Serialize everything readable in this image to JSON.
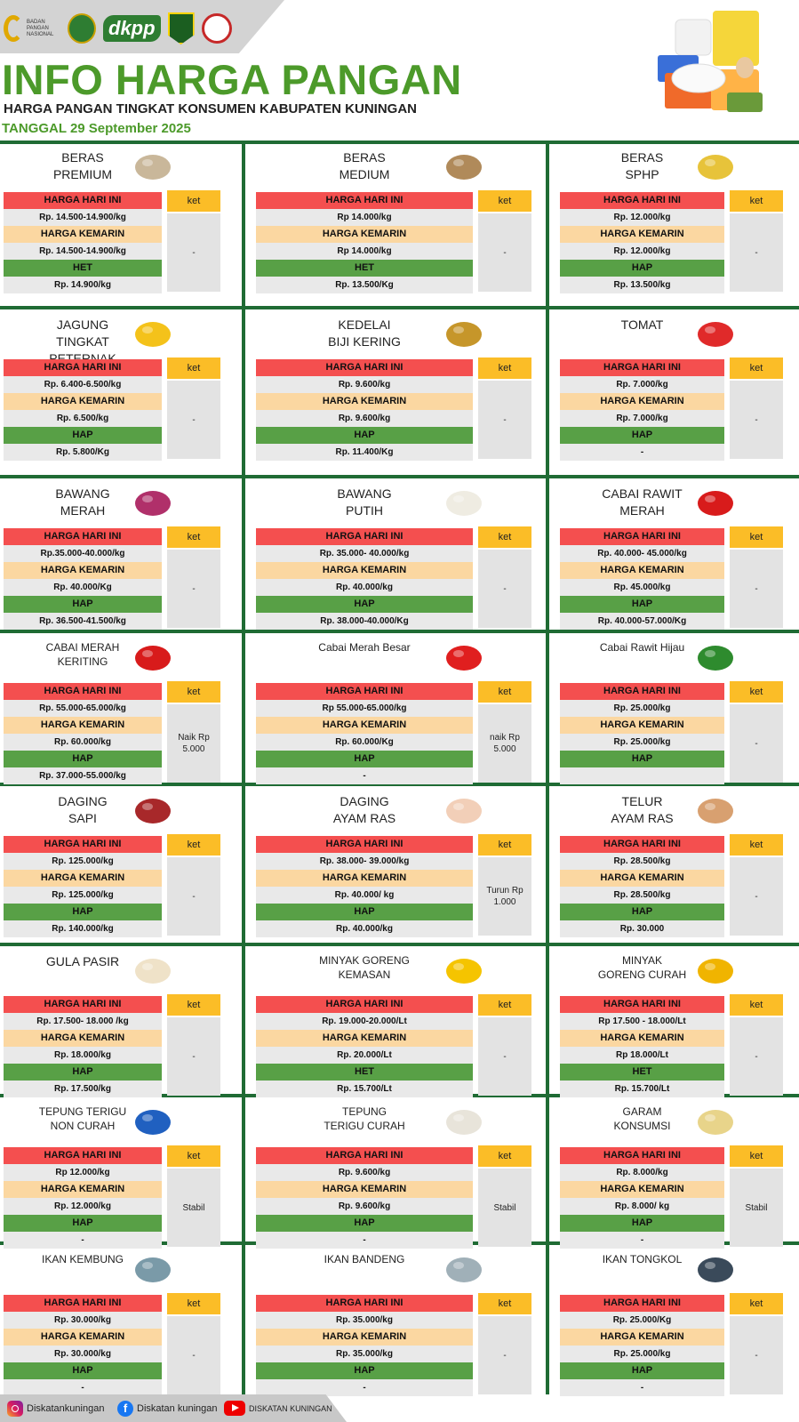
{
  "header": {
    "logo_text": "BADAN PANGAN NASIONAL",
    "dkpp_logo": "dkpp",
    "title": "INFO HARGA PANGAN",
    "subtitle": "HARGA PANGAN TINGKAT KONSUMEN  KABUPATEN KUNINGAN",
    "date": "TANGGAL 29 September 2025"
  },
  "labels": {
    "today": "HARGA HARI INI",
    "yesterday": "HARGA KEMARIN",
    "ket": "ket"
  },
  "commodities": [
    {
      "name": "BERAS\nPREMIUM",
      "today": "Rp. 14.500-14.900/kg",
      "yesterday": "Rp. 14.500-14.900/kg",
      "ref_label": "HET",
      "ref": "Rp. 14.900/kg",
      "note": "-",
      "icon": "rice-sack-icon"
    },
    {
      "name": "BERAS\nMEDIUM",
      "today": "Rp 14.000/kg",
      "yesterday": "Rp 14.000/kg",
      "ref_label": "HET",
      "ref": "Rp. 13.500/Kg",
      "note": "-",
      "icon": "rice-bowl-icon"
    },
    {
      "name": "BERAS\nSPHP",
      "today": "Rp. 12.000/kg",
      "yesterday": "Rp. 12.000/kg",
      "ref_label": "HAP",
      "ref": "Rp. 13.500/kg",
      "note": "-",
      "icon": "rice-bag-icon"
    },
    {
      "name": "JAGUNG\nTINGKAT\nPETERNAK",
      "today": "Rp. 6.400-6.500/kg",
      "yesterday": "Rp. 6.500/kg",
      "ref_label": "HAP",
      "ref": "Rp. 5.800/Kg",
      "note": "-",
      "icon": "corn-icon"
    },
    {
      "name": "KEDELAI\nBIJI KERING",
      "today": "Rp. 9.600/kg",
      "yesterday": "Rp. 9.600/kg",
      "ref_label": "HAP",
      "ref": "Rp. 11.400/Kg",
      "note": "-",
      "icon": "soybean-icon"
    },
    {
      "name": "TOMAT",
      "today": "Rp. 7.000/kg",
      "yesterday": "Rp. 7.000/kg",
      "ref_label": "HAP",
      "ref": "-",
      "note": "-",
      "icon": "tomato-icon"
    },
    {
      "name": "BAWANG\nMERAH",
      "today": "Rp.35.000-40.000/kg",
      "yesterday": "Rp. 40.000/Kg",
      "ref_label": "HAP",
      "ref": "Rp. 36.500-41.500/kg",
      "note": "-",
      "icon": "shallot-icon"
    },
    {
      "name": "BAWANG\nPUTIH",
      "today": "Rp. 35.000- 40.000/kg",
      "yesterday": "Rp. 40.000/kg",
      "ref_label": "HAP",
      "ref": "Rp. 38.000-40.000/Kg",
      "note": "-",
      "icon": "garlic-icon"
    },
    {
      "name": "CABAI RAWIT\nMERAH",
      "today": "Rp. 40.000- 45.000/kg",
      "yesterday": "Rp. 45.000/kg",
      "ref_label": "HAP",
      "ref": "Rp. 40.000-57.000/Kg",
      "note": "-",
      "icon": "red-chili-icon"
    },
    {
      "name": "CABAI MERAH\nKERITING",
      "today": "Rp.  55.000-65.000/kg",
      "yesterday": "Rp. 60.000/kg",
      "ref_label": "HAP",
      "ref": "Rp. 37.000-55.000/kg",
      "note": "Naik Rp\n5.000",
      "icon": "curly-chili-icon"
    },
    {
      "name": "Cabai Merah Besar",
      "today": "Rp  55.000-65.000/kg",
      "yesterday": "Rp. 60.000/Kg",
      "ref_label": "HAP",
      "ref": "-",
      "note": "naik Rp\n5.000",
      "icon": "big-chili-icon"
    },
    {
      "name": "Cabai Rawit Hijau",
      "today": "Rp. 25.000/kg",
      "yesterday": "Rp. 25.000/kg",
      "ref_label": "HAP",
      "ref": "",
      "note": "-",
      "icon": "green-chili-icon"
    },
    {
      "name": "DAGING\nSAPI",
      "today": "Rp. 125.000/kg",
      "yesterday": "Rp. 125.000/kg",
      "ref_label": "HAP",
      "ref": "Rp. 140.000/kg",
      "note": "-",
      "icon": "beef-icon"
    },
    {
      "name": "DAGING\nAYAM RAS",
      "today": "Rp. 38.000- 39.000/kg",
      "yesterday": "Rp. 40.000/ kg",
      "ref_label": "HAP",
      "ref": "Rp. 40.000/kg",
      "note": "Turun Rp\n1.000",
      "icon": "chicken-icon"
    },
    {
      "name": "TELUR\nAYAM RAS",
      "today": "Rp. 28.500/kg",
      "yesterday": "Rp. 28.500/kg",
      "ref_label": "HAP",
      "ref": "Rp. 30.000",
      "note": "-",
      "icon": "egg-icon"
    },
    {
      "name": "GULA PASIR",
      "today": "Rp. 17.500- 18.000 /kg",
      "yesterday": "Rp. 18.000/kg",
      "ref_label": "HAP",
      "ref": "Rp. 17.500/kg",
      "note": "-",
      "icon": "sugar-icon"
    },
    {
      "name": "MINYAK GORENG\nKEMASAN",
      "today": "Rp. 19.000-20.000/Lt",
      "yesterday": "Rp. 20.000/Lt",
      "ref_label": "HET",
      "ref": "Rp. 15.700/Lt",
      "note": "-",
      "icon": "oil-bottle-icon"
    },
    {
      "name": "MINYAK\nGORENG CURAH",
      "today": "Rp 17.500 - 18.000/Lt",
      "yesterday": "Rp 18.000/Lt",
      "ref_label": "HET",
      "ref": "Rp. 15.700/Lt",
      "note": "-",
      "icon": "bulk-oil-icon"
    },
    {
      "name": "TEPUNG TERIGU\nNON CURAH",
      "today": "Rp 12.000/kg",
      "yesterday": "Rp. 12.000/kg",
      "ref_label": "HAP",
      "ref": "-",
      "note": "Stabil",
      "icon": "flour-pack-icon"
    },
    {
      "name": "TEPUNG\nTERIGU CURAH",
      "today": "Rp. 9.600/kg",
      "yesterday": "Rp. 9.600/kg",
      "ref_label": "HAP",
      "ref": "-",
      "note": "Stabil",
      "icon": "flour-sack-icon"
    },
    {
      "name": "GARAM\nKONSUMSI",
      "today": "Rp. 8.000/kg",
      "yesterday": "Rp. 8.000/ kg",
      "ref_label": "HAP",
      "ref": "-",
      "note": "Stabil",
      "icon": "salt-icon"
    },
    {
      "name": "IKAN KEMBUNG",
      "today": "Rp. 30.000/kg",
      "yesterday": "Rp. 30.000/kg",
      "ref_label": "HAP",
      "ref": "-",
      "note": "-",
      "icon": "mackerel-icon"
    },
    {
      "name": "IKAN BANDENG",
      "today": "Rp. 35.000/kg",
      "yesterday": "Rp. 35.000/kg",
      "ref_label": "HAP",
      "ref": "-",
      "note": "-",
      "icon": "milkfish-icon"
    },
    {
      "name": "IKAN TONGKOL",
      "today": "Rp. 25.000/Kg",
      "yesterday": "Rp. 25.000/kg",
      "ref_label": "HAP",
      "ref": "-",
      "note": "-",
      "icon": "tuna-icon"
    }
  ],
  "footer": {
    "instagram": "Diskatankuningan",
    "facebook": "Diskatan kuningan",
    "youtube": "DISKATAN KUNINGAN"
  }
}
